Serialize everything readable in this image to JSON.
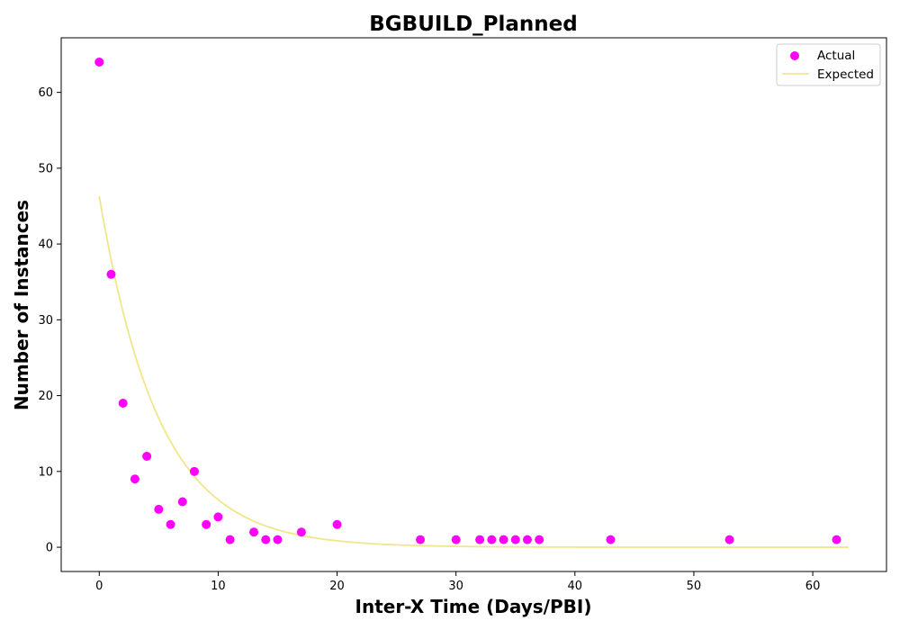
{
  "chart_data": {
    "type": "scatter",
    "title": "BGBUILD_Planned",
    "xlabel": "Inter-X Time (Days/PBI)",
    "ylabel": "Number of Instances",
    "xlim": [
      -3.2,
      66.2
    ],
    "ylim": [
      -3.2,
      67.2
    ],
    "xticks": [
      0,
      10,
      20,
      30,
      40,
      50,
      60
    ],
    "yticks": [
      0,
      10,
      20,
      30,
      40,
      50,
      60
    ],
    "grid": false,
    "legend_position": "top-right",
    "series": [
      {
        "name": "Actual",
        "kind": "scatter",
        "color": "#ff00ff",
        "points": [
          [
            0,
            64
          ],
          [
            1,
            36
          ],
          [
            2,
            19
          ],
          [
            3,
            9
          ],
          [
            4,
            12
          ],
          [
            5,
            5
          ],
          [
            6,
            3
          ],
          [
            7,
            6
          ],
          [
            8,
            10
          ],
          [
            9,
            3
          ],
          [
            10,
            4
          ],
          [
            11,
            1
          ],
          [
            13,
            2
          ],
          [
            14,
            1
          ],
          [
            15,
            1
          ],
          [
            17,
            2
          ],
          [
            20,
            3
          ],
          [
            27,
            1
          ],
          [
            30,
            1
          ],
          [
            32,
            1
          ],
          [
            33,
            1
          ],
          [
            34,
            1
          ],
          [
            35,
            1
          ],
          [
            36,
            1
          ],
          [
            37,
            1
          ],
          [
            43,
            1
          ],
          [
            53,
            1
          ],
          [
            62,
            1
          ]
        ]
      },
      {
        "name": "Expected",
        "kind": "line",
        "color": "#f0e68c",
        "model": "exponential",
        "amplitude": 46.3,
        "rate": 0.2,
        "x_range": [
          0,
          63
        ]
      }
    ]
  }
}
